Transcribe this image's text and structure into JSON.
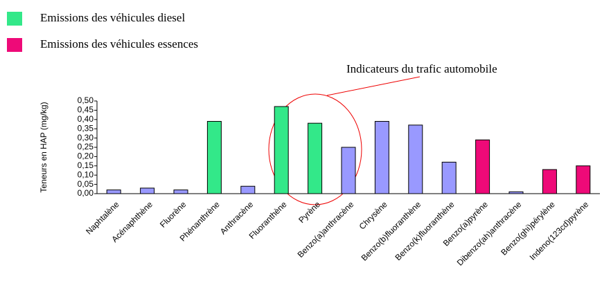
{
  "chart_data": {
    "type": "bar",
    "y_label": "Teneurs en HAP (mg/kg)",
    "annotation": "Indicateurs du trafic automobile",
    "legend": [
      {
        "label": "Emissions des véhicules diesel",
        "color": "#33e889"
      },
      {
        "label": "Emissions des véhicules essences",
        "color": "#ee0a78"
      }
    ],
    "categories": [
      "Naphtalène",
      "Acénaphthène",
      "Fluorène",
      "Phénanthrène",
      "Anthracène",
      "Fluoranthène",
      "Pyrène",
      "Benzo(a)anthracène",
      "Chrysène",
      "Benzo(b)fluoranthène",
      "Benzo(k)fluoranthène",
      "Benzo(a)pyrène",
      "Dibenzo(ah)anthracène",
      "Benzo(ghi)pérylène",
      "Indeno(123cd)pyrène"
    ],
    "values": [
      0.02,
      0.03,
      0.02,
      0.39,
      0.04,
      0.47,
      0.38,
      0.25,
      0.39,
      0.37,
      0.17,
      0.29,
      0.01,
      0.13,
      0.15
    ],
    "colors": [
      "#9999ff",
      "#9999ff",
      "#9999ff",
      "#33e889",
      "#9999ff",
      "#33e889",
      "#33e889",
      "#9999ff",
      "#9999ff",
      "#9999ff",
      "#9999ff",
      "#ee0a78",
      "#9999ff",
      "#ee0a78",
      "#ee0a78"
    ],
    "ylim": [
      0,
      0.5
    ],
    "yticks": [
      {
        "value": 0,
        "label": "0,00"
      },
      {
        "value": 0.05,
        "label": "0,05"
      },
      {
        "value": 0.1,
        "label": "0,10"
      },
      {
        "value": 0.15,
        "label": "0,15"
      },
      {
        "value": 0.2,
        "label": "0,20"
      },
      {
        "value": 0.25,
        "label": "0,25"
      },
      {
        "value": 0.3,
        "label": "0,30"
      },
      {
        "value": 0.35,
        "label": "0,35"
      },
      {
        "value": 0.4,
        "label": "0,40"
      },
      {
        "value": 0.45,
        "label": "0,45"
      },
      {
        "value": 0.5,
        "label": "0,50"
      }
    ]
  }
}
